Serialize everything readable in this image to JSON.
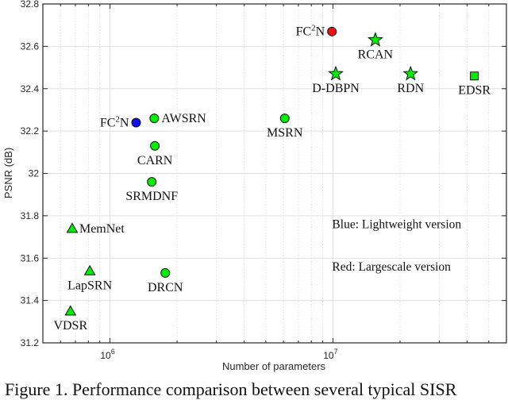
{
  "chart_data": {
    "type": "scatter",
    "title": "",
    "xlabel": "Number of parameters",
    "ylabel": "PSNR (dB)",
    "xscale": "log",
    "xlim": [
      500000,
      60000000
    ],
    "ylim": [
      31.2,
      32.8
    ],
    "xticks": [
      {
        "value": 1000000,
        "label": "10",
        "exp": "6"
      },
      {
        "value": 10000000,
        "label": "10",
        "exp": "7"
      }
    ],
    "yticks": [
      31.2,
      31.4,
      31.6,
      31.8,
      32,
      32.2,
      32.4,
      32.6,
      32.8
    ],
    "ytick_labels": [
      "31.2",
      "31.4",
      "31.6",
      "31.8",
      "32",
      "32.2",
      "32.4",
      "32.6",
      "32.8"
    ],
    "grid": true,
    "legend": null,
    "colors": {
      "green": "#00ee00",
      "red": "#ee1111",
      "blue": "#1111ee",
      "text_red": "#ee1111",
      "text_blue": "#1a1aee"
    },
    "points": [
      {
        "name": "FC2N",
        "display": "FC",
        "sup": "2",
        "suffix": "N",
        "x": 9900000,
        "y": 32.67,
        "marker": "circle",
        "color": "red",
        "label_pos": "left"
      },
      {
        "name": "RCAN",
        "x": 15500000,
        "y": 32.63,
        "marker": "star",
        "color": "green",
        "label_pos": "below"
      },
      {
        "name": "D-DBPN",
        "x": 10300000,
        "y": 32.47,
        "marker": "star",
        "color": "green",
        "label_pos": "below"
      },
      {
        "name": "RDN",
        "x": 22300000,
        "y": 32.47,
        "marker": "star",
        "color": "green",
        "label_pos": "below"
      },
      {
        "name": "EDSR",
        "x": 43100000,
        "y": 32.46,
        "marker": "square",
        "color": "green",
        "label_pos": "below"
      },
      {
        "name": "FC2N",
        "display": "FC",
        "sup": "2",
        "suffix": "N",
        "x": 1310000,
        "y": 32.24,
        "marker": "circle",
        "color": "blue",
        "label_pos": "left"
      },
      {
        "name": "AWSRN",
        "x": 1580000,
        "y": 32.26,
        "marker": "circle",
        "color": "green",
        "label_pos": "right"
      },
      {
        "name": "MSRN",
        "x": 6080000,
        "y": 32.26,
        "marker": "circle",
        "color": "green",
        "label_pos": "below"
      },
      {
        "name": "CARN",
        "x": 1590000,
        "y": 32.13,
        "marker": "circle",
        "color": "green",
        "label_pos": "below"
      },
      {
        "name": "SRMDNF",
        "x": 1540000,
        "y": 31.96,
        "marker": "circle",
        "color": "green",
        "label_pos": "below"
      },
      {
        "name": "MemNet",
        "x": 677000,
        "y": 31.74,
        "marker": "triangle",
        "color": "green",
        "label_pos": "right"
      },
      {
        "name": "LapSRN",
        "x": 812000,
        "y": 31.54,
        "marker": "triangle",
        "color": "green",
        "label_pos": "below"
      },
      {
        "name": "DRCN",
        "x": 1770000,
        "y": 31.53,
        "marker": "circle",
        "color": "green",
        "label_pos": "below"
      },
      {
        "name": "VDSR",
        "x": 665000,
        "y": 31.35,
        "marker": "triangle",
        "color": "green",
        "label_pos": "below"
      }
    ],
    "annotations": [
      {
        "text": "Blue: Lightweight version",
        "x": 10000000,
        "y": 31.76
      },
      {
        "text": "Red:  Largescale version",
        "x": 10000000,
        "y": 31.56
      }
    ]
  },
  "caption": "Figure 1. Performance comparison between several typical SISR"
}
